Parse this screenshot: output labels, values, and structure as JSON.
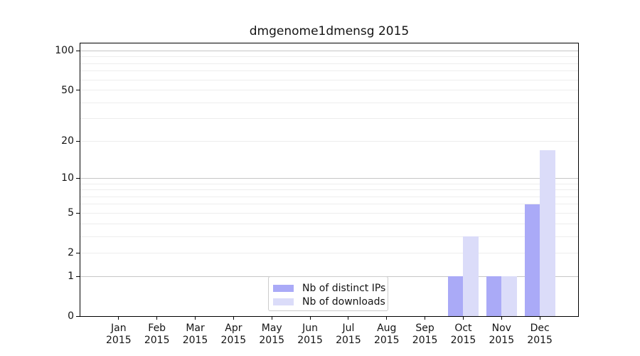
{
  "chart_data": {
    "type": "bar",
    "title": "dmgenome1dmensg 2015",
    "x_categories": [
      "Jan",
      "Feb",
      "Mar",
      "Apr",
      "May",
      "Jun",
      "Jul",
      "Aug",
      "Sep",
      "Oct",
      "Nov",
      "Dec"
    ],
    "x_year_label": "2015",
    "series": [
      {
        "name": "Nb of distinct IPs",
        "color": "#aaaaf7",
        "values": [
          0,
          0,
          0,
          0,
          0,
          0,
          0,
          0,
          0,
          1,
          1,
          6
        ]
      },
      {
        "name": "Nb of downloads",
        "color": "#dbdcf9",
        "values": [
          0,
          0,
          0,
          0,
          0,
          0,
          0,
          0,
          0,
          3,
          1,
          17
        ]
      }
    ],
    "y_scale": "log1p",
    "ylim": [
      0,
      114
    ],
    "y_tick_values": [
      0,
      1,
      2,
      5,
      10,
      20,
      50,
      100
    ],
    "grid": "horizontal",
    "grid_major_values": [
      1,
      10,
      100
    ],
    "grid_minor_values": [
      2,
      3,
      4,
      5,
      6,
      7,
      8,
      9,
      20,
      30,
      40,
      50,
      60,
      70,
      80,
      90
    ],
    "legend_position": "lower center",
    "colors": {
      "grid_major": "#c6c6c6",
      "grid_minor": "#ededed",
      "axis": "#000000",
      "text": "#141414",
      "background": "#ffffff"
    }
  }
}
